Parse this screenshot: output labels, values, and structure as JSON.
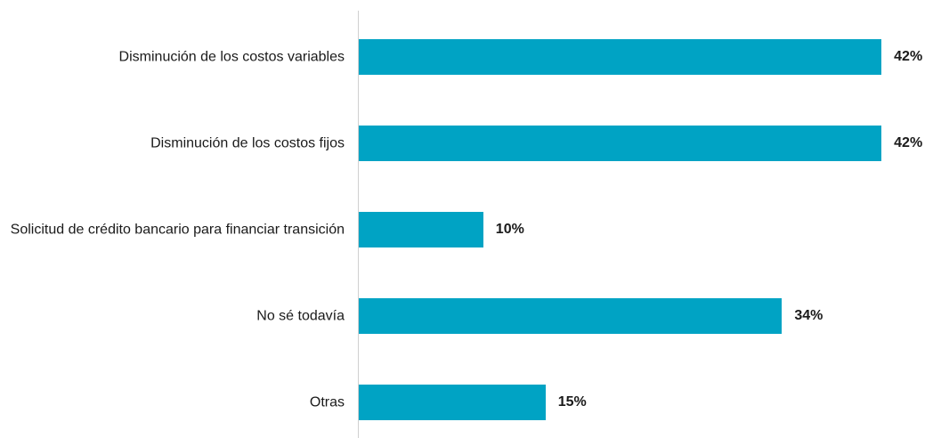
{
  "chart_data": {
    "type": "bar",
    "orientation": "horizontal",
    "categories": [
      "Disminución de los costos variables",
      "Disminución de los costos fijos",
      "Solicitud de crédito bancario para financiar transición",
      "No sé todavía",
      "Otras"
    ],
    "values": [
      42,
      42,
      10,
      34,
      15
    ],
    "value_labels": [
      "42%",
      "42%",
      "10%",
      "34%",
      "15%"
    ],
    "color": "#00a3c4"
  }
}
